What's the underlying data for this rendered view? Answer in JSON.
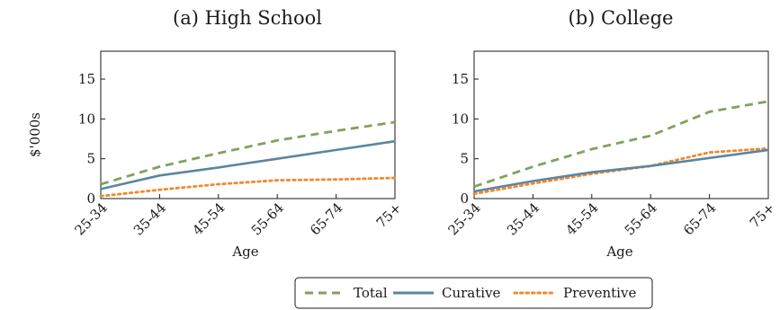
{
  "ylabel": "$'000s",
  "legend": {
    "items": [
      {
        "label": "Total",
        "color": "#7ea35a",
        "dash": "dash"
      },
      {
        "label": "Curative",
        "color": "#5b86a1",
        "dash": "solid"
      },
      {
        "label": "Preventive",
        "color": "#f08a2c",
        "dash": "dot"
      }
    ]
  },
  "chart_data": [
    {
      "type": "line",
      "title": "(a) High School",
      "xlabel": "Age",
      "ylabel": "$'000s",
      "categories": [
        "25-34",
        "35-44",
        "45-54",
        "55-64",
        "65-74",
        "75+"
      ],
      "yticks": [
        0,
        5,
        10,
        15
      ],
      "ylim": [
        0,
        18.5
      ],
      "grid": false,
      "series": [
        {
          "name": "Total",
          "values": [
            1.8,
            4.0,
            5.7,
            7.3,
            8.5,
            9.6
          ]
        },
        {
          "name": "Curative",
          "values": [
            1.2,
            2.9,
            3.9,
            5.0,
            6.1,
            7.2
          ]
        },
        {
          "name": "Preventive",
          "values": [
            0.3,
            1.1,
            1.8,
            2.3,
            2.4,
            2.6
          ]
        }
      ]
    },
    {
      "type": "line",
      "title": "(b) College",
      "xlabel": "Age",
      "ylabel": "$'000s",
      "categories": [
        "25-34",
        "35-44",
        "45-54",
        "55-64",
        "65-74",
        "75+"
      ],
      "yticks": [
        0,
        5,
        10,
        15
      ],
      "ylim": [
        0,
        18.5
      ],
      "grid": false,
      "series": [
        {
          "name": "Total",
          "values": [
            1.5,
            4.0,
            6.2,
            7.9,
            10.9,
            12.2
          ]
        },
        {
          "name": "Curative",
          "values": [
            0.9,
            2.2,
            3.3,
            4.1,
            5.1,
            6.1
          ]
        },
        {
          "name": "Preventive",
          "values": [
            0.6,
            1.9,
            3.1,
            4.1,
            5.8,
            6.3
          ]
        }
      ]
    }
  ]
}
